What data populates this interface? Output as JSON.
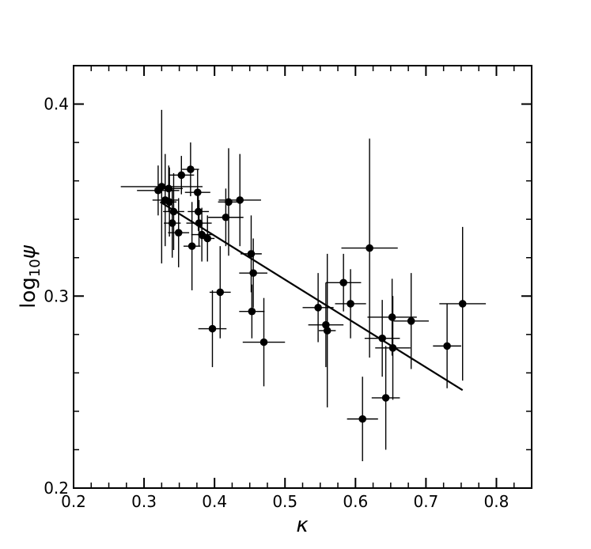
{
  "chart_data": {
    "type": "scatter",
    "title": "",
    "xlabel": "κ",
    "ylabel_main": "log",
    "ylabel_sub": "10",
    "ylabel_tail": "ψ",
    "xlim": [
      0.2,
      0.85
    ],
    "ylim": [
      0.2,
      0.42
    ],
    "x_ticks": [
      0.2,
      0.3,
      0.4,
      0.5,
      0.6,
      0.7,
      0.8
    ],
    "x_tick_labels": [
      "0.2",
      "0.3",
      "0.4",
      "0.5",
      "0.6",
      "0.7",
      "0.8"
    ],
    "y_ticks": [
      0.2,
      0.3,
      0.4
    ],
    "y_tick_labels": [
      "0.2",
      "0.3",
      "0.4"
    ],
    "x_minor_step": 0.025,
    "y_minor_step": 0.02,
    "grid": false,
    "marker_color": "#000000",
    "fit_line": {
      "x": [
        0.323,
        0.752
      ],
      "y": [
        0.349,
        0.251
      ]
    },
    "points": [
      {
        "x": 0.32,
        "y": 0.355,
        "xerr": 0.03,
        "yerr": 0.013
      },
      {
        "x": 0.325,
        "y": 0.357,
        "xerr": 0.058,
        "yerr": 0.04
      },
      {
        "x": 0.33,
        "y": 0.35,
        "xerr": 0.018,
        "yerr": 0.024
      },
      {
        "x": 0.335,
        "y": 0.356,
        "xerr": 0.02,
        "yerr": 0.012
      },
      {
        "x": 0.336,
        "y": 0.349,
        "xerr": 0.01,
        "yerr": 0.018
      },
      {
        "x": 0.34,
        "y": 0.338,
        "xerr": 0.012,
        "yerr": 0.018
      },
      {
        "x": 0.342,
        "y": 0.344,
        "xerr": 0.015,
        "yerr": 0.02
      },
      {
        "x": 0.349,
        "y": 0.333,
        "xerr": 0.015,
        "yerr": 0.018
      },
      {
        "x": 0.353,
        "y": 0.363,
        "xerr": 0.018,
        "yerr": 0.01
      },
      {
        "x": 0.366,
        "y": 0.366,
        "xerr": 0.012,
        "yerr": 0.014
      },
      {
        "x": 0.368,
        "y": 0.326,
        "xerr": 0.012,
        "yerr": 0.023
      },
      {
        "x": 0.376,
        "y": 0.354,
        "xerr": 0.018,
        "yerr": 0.012
      },
      {
        "x": 0.377,
        "y": 0.344,
        "xerr": 0.015,
        "yerr": 0.01
      },
      {
        "x": 0.378,
        "y": 0.338,
        "xerr": 0.018,
        "yerr": 0.012
      },
      {
        "x": 0.382,
        "y": 0.332,
        "xerr": 0.015,
        "yerr": 0.014
      },
      {
        "x": 0.39,
        "y": 0.33,
        "xerr": 0.01,
        "yerr": 0.012
      },
      {
        "x": 0.397,
        "y": 0.283,
        "xerr": 0.02,
        "yerr": 0.02
      },
      {
        "x": 0.408,
        "y": 0.302,
        "xerr": 0.015,
        "yerr": 0.024
      },
      {
        "x": 0.416,
        "y": 0.341,
        "xerr": 0.025,
        "yerr": 0.015
      },
      {
        "x": 0.42,
        "y": 0.349,
        "xerr": 0.015,
        "yerr": 0.028
      },
      {
        "x": 0.436,
        "y": 0.35,
        "xerr": 0.03,
        "yerr": 0.024
      },
      {
        "x": 0.452,
        "y": 0.322,
        "xerr": 0.015,
        "yerr": 0.02
      },
      {
        "x": 0.453,
        "y": 0.292,
        "xerr": 0.018,
        "yerr": 0.014
      },
      {
        "x": 0.455,
        "y": 0.312,
        "xerr": 0.02,
        "yerr": 0.018
      },
      {
        "x": 0.47,
        "y": 0.276,
        "xerr": 0.03,
        "yerr": 0.023
      },
      {
        "x": 0.547,
        "y": 0.294,
        "xerr": 0.022,
        "yerr": 0.018
      },
      {
        "x": 0.558,
        "y": 0.285,
        "xerr": 0.025,
        "yerr": 0.022
      },
      {
        "x": 0.56,
        "y": 0.282,
        "xerr": 0.012,
        "yerr": 0.04
      },
      {
        "x": 0.583,
        "y": 0.307,
        "xerr": 0.025,
        "yerr": 0.015
      },
      {
        "x": 0.593,
        "y": 0.296,
        "xerr": 0.022,
        "yerr": 0.018
      },
      {
        "x": 0.61,
        "y": 0.236,
        "xerr": 0.022,
        "yerr": 0.022
      },
      {
        "x": 0.62,
        "y": 0.325,
        "xerr": 0.04,
        "yerr": 0.057
      },
      {
        "x": 0.638,
        "y": 0.278,
        "xerr": 0.025,
        "yerr": 0.02
      },
      {
        "x": 0.643,
        "y": 0.247,
        "xerr": 0.02,
        "yerr": 0.027
      },
      {
        "x": 0.652,
        "y": 0.289,
        "xerr": 0.035,
        "yerr": 0.02
      },
      {
        "x": 0.653,
        "y": 0.273,
        "xerr": 0.025,
        "yerr": 0.027
      },
      {
        "x": 0.679,
        "y": 0.287,
        "xerr": 0.025,
        "yerr": 0.025
      },
      {
        "x": 0.73,
        "y": 0.274,
        "xerr": 0.02,
        "yerr": 0.022
      },
      {
        "x": 0.752,
        "y": 0.296,
        "xerr": 0.033,
        "yerr": 0.04
      }
    ]
  }
}
